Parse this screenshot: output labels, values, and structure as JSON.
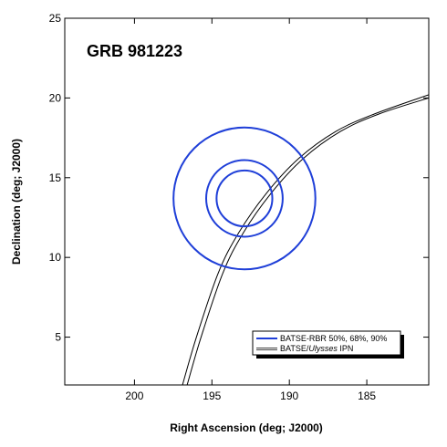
{
  "chart_data": {
    "type": "line",
    "title": "GRB 981223",
    "xlabel": "Right Ascension (deg; J2000)",
    "ylabel": "Declination (deg; J2000)",
    "xlim": [
      204.5,
      181.0
    ],
    "ylim": [
      2.0,
      25.0
    ],
    "x_ticks": [
      200,
      195,
      190,
      185
    ],
    "y_ticks": [
      5,
      10,
      15,
      20,
      25
    ],
    "grid": false,
    "legend_position": "bottom-right",
    "legend": {
      "batse_label": "BATSE-RBR 50%, 68%, 90%",
      "ipn_label_prefix": "BATSE/",
      "ipn_label_italic": "Ulysses",
      "ipn_label_suffix": " IPN"
    },
    "error_circles": {
      "name": "BATSE-RBR 50%, 68%, 90%",
      "color": "#1f3fd8",
      "center": [
        192.9,
        13.7
      ],
      "radii_deg": [
        1.75,
        2.4,
        4.45
      ]
    },
    "ipn_annulus": {
      "name": "BATSE/Ulysses IPN",
      "color": "#000000",
      "lines": [
        {
          "x": [
            196.9,
            196.0,
            194.6,
            193.3,
            191.5,
            189.4,
            187.0,
            184.5,
            181.0
          ],
          "y": [
            2.0,
            5.0,
            9.0,
            11.5,
            14.0,
            16.2,
            17.9,
            19.0,
            20.2
          ]
        },
        {
          "x": [
            196.6,
            195.7,
            194.3,
            193.0,
            191.2,
            189.1,
            186.7,
            184.2,
            181.0
          ],
          "y": [
            2.0,
            5.0,
            9.0,
            11.5,
            14.0,
            16.2,
            17.9,
            19.0,
            20.0
          ]
        }
      ]
    }
  }
}
